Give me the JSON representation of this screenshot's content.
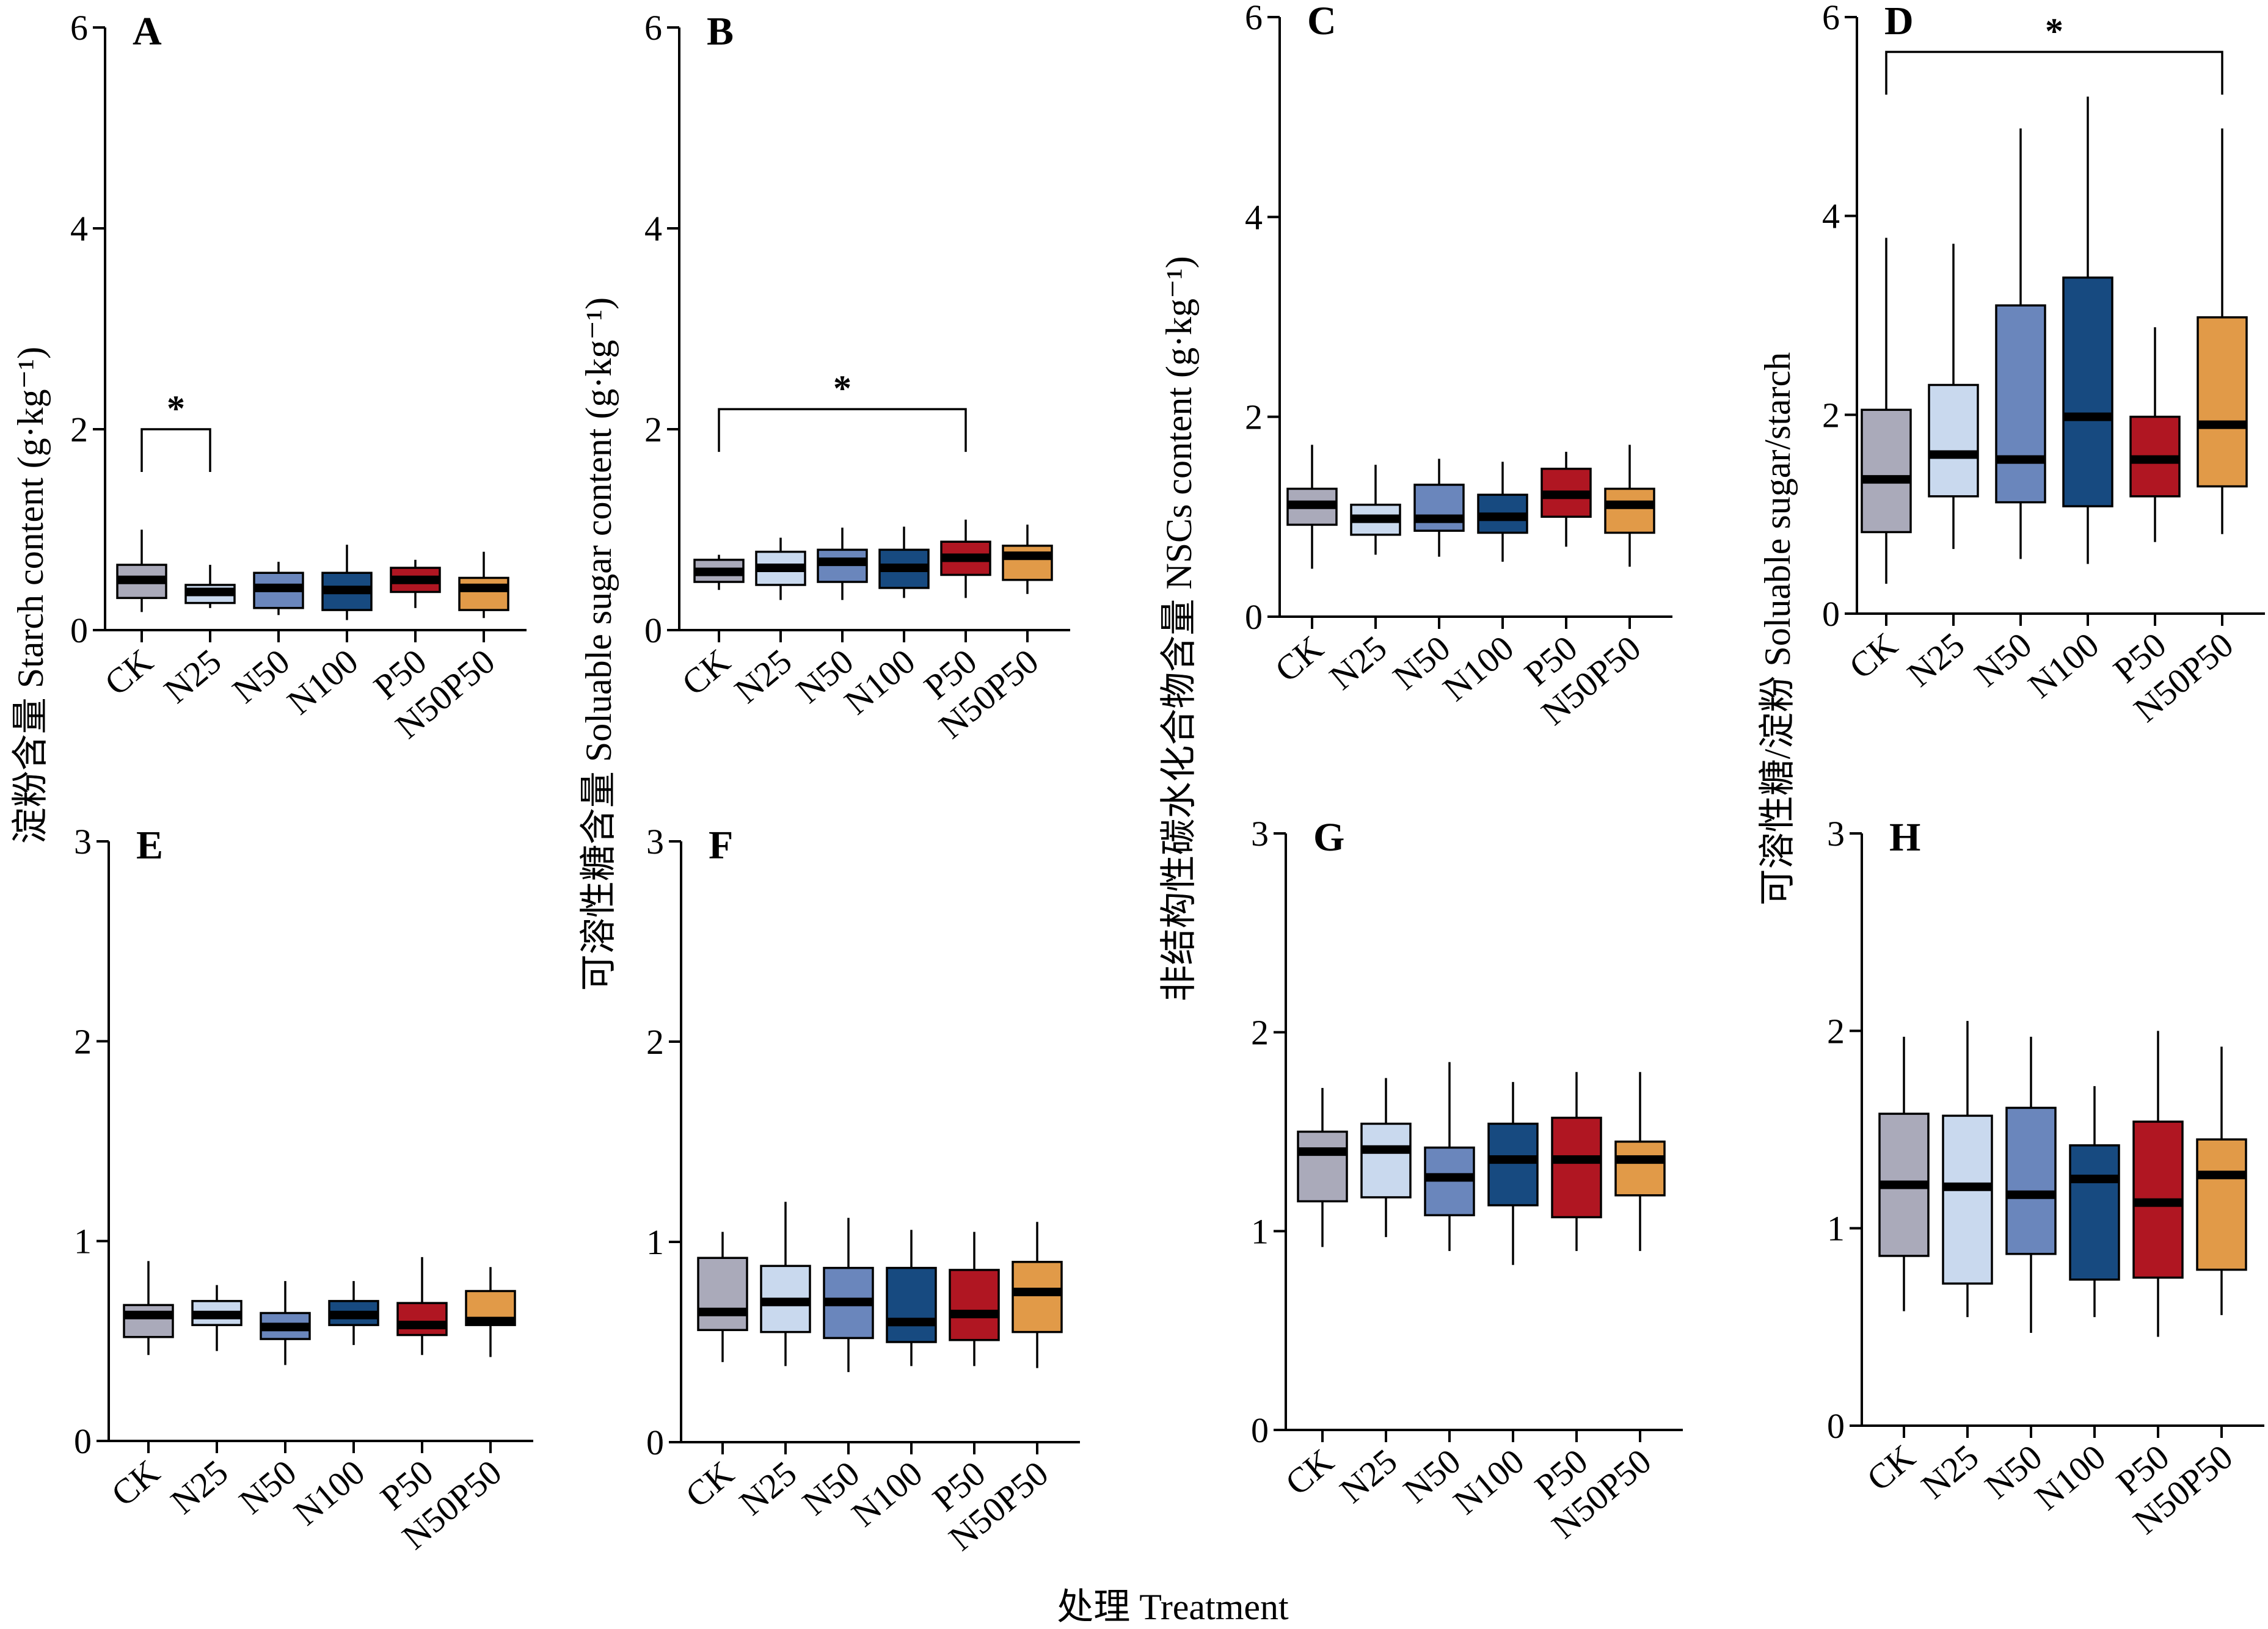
{
  "figure": {
    "x_axis_label": "处理 Treatment",
    "y_axis_labels": [
      "淀粉含量 Starch content (g·kg⁻¹)",
      "可溶性糖含量 Soluable sugar content (g·kg⁻¹)",
      "非结构性碳水化合物含量 NSCs content (g·kg⁻¹)",
      "可溶性糖/淀粉 Soluable sugar/starch"
    ]
  },
  "chart_data": [
    {
      "type": "box",
      "panel": "A",
      "ylim": [
        0,
        6
      ],
      "yticks": [
        0,
        2,
        4,
        6
      ],
      "categories": [
        "CK",
        "N25",
        "N50",
        "N100",
        "P50",
        "N50P50"
      ],
      "colors": [
        "#aaaaba",
        "#c9d9ee",
        "#6a86bc",
        "#174a80",
        "#b01622",
        "#e19a48"
      ],
      "boxes": [
        {
          "min": 0.18,
          "q1": 0.32,
          "median": 0.5,
          "q3": 0.65,
          "max": 1.0
        },
        {
          "min": 0.22,
          "q1": 0.27,
          "median": 0.38,
          "q3": 0.45,
          "max": 0.65
        },
        {
          "min": 0.15,
          "q1": 0.22,
          "median": 0.42,
          "q3": 0.57,
          "max": 0.68
        },
        {
          "min": 0.1,
          "q1": 0.2,
          "median": 0.4,
          "q3": 0.57,
          "max": 0.85
        },
        {
          "min": 0.22,
          "q1": 0.38,
          "median": 0.5,
          "q3": 0.62,
          "max": 0.7
        },
        {
          "min": 0.12,
          "q1": 0.2,
          "median": 0.42,
          "q3": 0.52,
          "max": 0.78
        }
      ],
      "significance": [
        {
          "from": "CK",
          "to": "N25",
          "label": "*",
          "y": 2.0
        }
      ]
    },
    {
      "type": "box",
      "panel": "B",
      "ylim": [
        0,
        6
      ],
      "yticks": [
        0,
        2,
        4,
        6
      ],
      "categories": [
        "CK",
        "N25",
        "N50",
        "N100",
        "P50",
        "N50P50"
      ],
      "colors": [
        "#aaaaba",
        "#c9d9ee",
        "#6a86bc",
        "#174a80",
        "#b01622",
        "#e19a48"
      ],
      "boxes": [
        {
          "min": 0.4,
          "q1": 0.48,
          "median": 0.58,
          "q3": 0.7,
          "max": 0.75
        },
        {
          "min": 0.3,
          "q1": 0.45,
          "median": 0.62,
          "q3": 0.78,
          "max": 0.92
        },
        {
          "min": 0.3,
          "q1": 0.48,
          "median": 0.68,
          "q3": 0.8,
          "max": 1.02
        },
        {
          "min": 0.32,
          "q1": 0.42,
          "median": 0.62,
          "q3": 0.8,
          "max": 1.03
        },
        {
          "min": 0.32,
          "q1": 0.55,
          "median": 0.72,
          "q3": 0.88,
          "max": 1.1
        },
        {
          "min": 0.36,
          "q1": 0.5,
          "median": 0.74,
          "q3": 0.84,
          "max": 1.05
        }
      ],
      "significance": [
        {
          "from": "CK",
          "to": "P50",
          "label": "*",
          "y": 2.2
        }
      ]
    },
    {
      "type": "box",
      "panel": "C",
      "ylim": [
        0,
        6
      ],
      "yticks": [
        0,
        2,
        4,
        6
      ],
      "categories": [
        "CK",
        "N25",
        "N50",
        "N100",
        "P50",
        "N50P50"
      ],
      "colors": [
        "#aaaaba",
        "#c9d9ee",
        "#6a86bc",
        "#174a80",
        "#b01622",
        "#e19a48"
      ],
      "boxes": [
        {
          "min": 0.48,
          "q1": 0.92,
          "median": 1.12,
          "q3": 1.28,
          "max": 1.72
        },
        {
          "min": 0.62,
          "q1": 0.82,
          "median": 0.98,
          "q3": 1.12,
          "max": 1.52
        },
        {
          "min": 0.6,
          "q1": 0.86,
          "median": 0.98,
          "q3": 1.32,
          "max": 1.58
        },
        {
          "min": 0.55,
          "q1": 0.84,
          "median": 1.0,
          "q3": 1.22,
          "max": 1.55
        },
        {
          "min": 0.7,
          "q1": 1.0,
          "median": 1.22,
          "q3": 1.48,
          "max": 1.65
        },
        {
          "min": 0.5,
          "q1": 0.84,
          "median": 1.12,
          "q3": 1.28,
          "max": 1.72
        }
      ]
    },
    {
      "type": "box",
      "panel": "D",
      "ylim": [
        0,
        6
      ],
      "yticks": [
        0,
        2,
        4,
        6
      ],
      "categories": [
        "CK",
        "N25",
        "N50",
        "N100",
        "P50",
        "N50P50"
      ],
      "colors": [
        "#aaaaba",
        "#c9d9ee",
        "#6a86bc",
        "#174a80",
        "#b01622",
        "#e19a48"
      ],
      "boxes": [
        {
          "min": 0.3,
          "q1": 0.82,
          "median": 1.35,
          "q3": 2.05,
          "max": 3.78
        },
        {
          "min": 0.65,
          "q1": 1.18,
          "median": 1.6,
          "q3": 2.3,
          "max": 3.72
        },
        {
          "min": 0.55,
          "q1": 1.12,
          "median": 1.55,
          "q3": 3.1,
          "max": 4.88
        },
        {
          "min": 0.5,
          "q1": 1.08,
          "median": 1.98,
          "q3": 3.38,
          "max": 5.2
        },
        {
          "min": 0.72,
          "q1": 1.18,
          "median": 1.55,
          "q3": 1.98,
          "max": 2.88
        },
        {
          "min": 0.8,
          "q1": 1.28,
          "median": 1.9,
          "q3": 2.98,
          "max": 4.88
        }
      ],
      "significance": [
        {
          "from": "CK",
          "to": "N50P50",
          "label": "*",
          "y": 5.65
        }
      ]
    },
    {
      "type": "box",
      "panel": "E",
      "ylim": [
        0,
        3
      ],
      "yticks": [
        0,
        1,
        2,
        3
      ],
      "categories": [
        "CK",
        "N25",
        "N50",
        "N100",
        "P50",
        "N50P50"
      ],
      "colors": [
        "#aaaaba",
        "#c9d9ee",
        "#6a86bc",
        "#174a80",
        "#b01622",
        "#e19a48"
      ],
      "boxes": [
        {
          "min": 0.43,
          "q1": 0.52,
          "median": 0.63,
          "q3": 0.68,
          "max": 0.9
        },
        {
          "min": 0.45,
          "q1": 0.58,
          "median": 0.63,
          "q3": 0.7,
          "max": 0.78
        },
        {
          "min": 0.38,
          "q1": 0.51,
          "median": 0.57,
          "q3": 0.64,
          "max": 0.8
        },
        {
          "min": 0.48,
          "q1": 0.58,
          "median": 0.63,
          "q3": 0.7,
          "max": 0.8
        },
        {
          "min": 0.43,
          "q1": 0.53,
          "median": 0.58,
          "q3": 0.69,
          "max": 0.92
        },
        {
          "min": 0.42,
          "q1": 0.58,
          "median": 0.6,
          "q3": 0.75,
          "max": 0.87
        }
      ]
    },
    {
      "type": "box",
      "panel": "F",
      "ylim": [
        0,
        3
      ],
      "yticks": [
        0,
        1,
        2,
        3
      ],
      "categories": [
        "CK",
        "N25",
        "N50",
        "N100",
        "P50",
        "N50P50"
      ],
      "colors": [
        "#aaaaba",
        "#c9d9ee",
        "#6a86bc",
        "#174a80",
        "#b01622",
        "#e19a48"
      ],
      "boxes": [
        {
          "min": 0.4,
          "q1": 0.56,
          "median": 0.65,
          "q3": 0.92,
          "max": 1.05
        },
        {
          "min": 0.38,
          "q1": 0.55,
          "median": 0.7,
          "q3": 0.88,
          "max": 1.2
        },
        {
          "min": 0.35,
          "q1": 0.52,
          "median": 0.7,
          "q3": 0.87,
          "max": 1.12
        },
        {
          "min": 0.38,
          "q1": 0.5,
          "median": 0.6,
          "q3": 0.87,
          "max": 1.06
        },
        {
          "min": 0.38,
          "q1": 0.51,
          "median": 0.64,
          "q3": 0.86,
          "max": 1.05
        },
        {
          "min": 0.37,
          "q1": 0.55,
          "median": 0.75,
          "q3": 0.9,
          "max": 1.1
        }
      ]
    },
    {
      "type": "box",
      "panel": "G",
      "ylim": [
        0,
        3
      ],
      "yticks": [
        0,
        1,
        2,
        3
      ],
      "categories": [
        "CK",
        "N25",
        "N50",
        "N100",
        "P50",
        "N50P50"
      ],
      "colors": [
        "#aaaaba",
        "#c9d9ee",
        "#6a86bc",
        "#174a80",
        "#b01622",
        "#e19a48"
      ],
      "boxes": [
        {
          "min": 0.92,
          "q1": 1.15,
          "median": 1.4,
          "q3": 1.5,
          "max": 1.72
        },
        {
          "min": 0.97,
          "q1": 1.17,
          "median": 1.41,
          "q3": 1.54,
          "max": 1.77
        },
        {
          "min": 0.9,
          "q1": 1.08,
          "median": 1.27,
          "q3": 1.42,
          "max": 1.85
        },
        {
          "min": 0.83,
          "q1": 1.13,
          "median": 1.36,
          "q3": 1.54,
          "max": 1.75
        },
        {
          "min": 0.9,
          "q1": 1.07,
          "median": 1.36,
          "q3": 1.57,
          "max": 1.8
        },
        {
          "min": 0.9,
          "q1": 1.18,
          "median": 1.36,
          "q3": 1.45,
          "max": 1.8
        }
      ]
    },
    {
      "type": "box",
      "panel": "H",
      "ylim": [
        0,
        3
      ],
      "yticks": [
        0,
        1,
        2,
        3
      ],
      "categories": [
        "CK",
        "N25",
        "N50",
        "N100",
        "P50",
        "N50P50"
      ],
      "colors": [
        "#aaaaba",
        "#c9d9ee",
        "#6a86bc",
        "#174a80",
        "#b01622",
        "#e19a48"
      ],
      "boxes": [
        {
          "min": 0.58,
          "q1": 0.86,
          "median": 1.22,
          "q3": 1.58,
          "max": 1.97
        },
        {
          "min": 0.55,
          "q1": 0.72,
          "median": 1.21,
          "q3": 1.57,
          "max": 2.05
        },
        {
          "min": 0.47,
          "q1": 0.87,
          "median": 1.17,
          "q3": 1.61,
          "max": 1.97
        },
        {
          "min": 0.55,
          "q1": 0.74,
          "median": 1.25,
          "q3": 1.42,
          "max": 1.72
        },
        {
          "min": 0.45,
          "q1": 0.75,
          "median": 1.13,
          "q3": 1.54,
          "max": 2.0
        },
        {
          "min": 0.56,
          "q1": 0.79,
          "median": 1.27,
          "q3": 1.45,
          "max": 1.92
        }
      ]
    }
  ]
}
